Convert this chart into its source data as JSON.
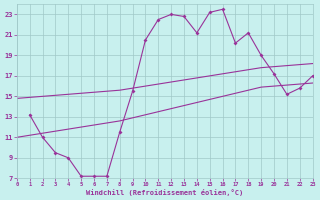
{
  "bg_color": "#c8f0ee",
  "grid_color": "#a0c8c8",
  "line_color": "#993399",
  "xlabel": "Windchill (Refroidissement éolien,°C)",
  "xlim": [
    0,
    23
  ],
  "ylim": [
    7,
    24
  ],
  "yticks": [
    7,
    9,
    11,
    13,
    15,
    17,
    19,
    21,
    23
  ],
  "xticks": [
    0,
    1,
    2,
    3,
    4,
    5,
    6,
    7,
    8,
    9,
    10,
    11,
    12,
    13,
    14,
    15,
    16,
    17,
    18,
    19,
    20,
    21,
    22,
    23
  ],
  "jagged_x": [
    1,
    2,
    3,
    4,
    5,
    6,
    7,
    8,
    9,
    10,
    11,
    12,
    13,
    14,
    15,
    16,
    17,
    18,
    19,
    20,
    21,
    22,
    23
  ],
  "jagged_y": [
    13.2,
    11.0,
    9.5,
    9.0,
    7.2,
    7.2,
    7.2,
    11.5,
    15.5,
    20.5,
    22.5,
    23.0,
    22.8,
    21.2,
    23.2,
    23.5,
    20.2,
    21.2,
    19.0,
    17.2,
    15.2,
    15.8,
    17.0
  ],
  "lower_x": [
    0,
    1,
    2,
    3,
    4,
    5,
    6,
    7,
    8,
    9,
    10,
    11,
    12,
    13,
    14,
    15,
    16,
    17,
    18,
    19,
    20,
    21,
    22,
    23
  ],
  "lower_y": [
    11.0,
    11.2,
    11.4,
    11.6,
    11.8,
    12.0,
    12.2,
    12.4,
    12.6,
    12.9,
    13.2,
    13.5,
    13.8,
    14.1,
    14.4,
    14.7,
    15.0,
    15.3,
    15.6,
    15.9,
    16.0,
    16.1,
    16.2,
    16.3
  ],
  "upper_x": [
    0,
    1,
    2,
    3,
    4,
    5,
    6,
    7,
    8,
    9,
    10,
    11,
    12,
    13,
    14,
    15,
    16,
    17,
    18,
    19,
    20,
    21,
    22,
    23
  ],
  "upper_y": [
    14.8,
    14.9,
    15.0,
    15.1,
    15.2,
    15.3,
    15.4,
    15.5,
    15.6,
    15.8,
    16.0,
    16.2,
    16.4,
    16.6,
    16.8,
    17.0,
    17.2,
    17.4,
    17.6,
    17.8,
    17.9,
    18.0,
    18.1,
    18.2
  ]
}
